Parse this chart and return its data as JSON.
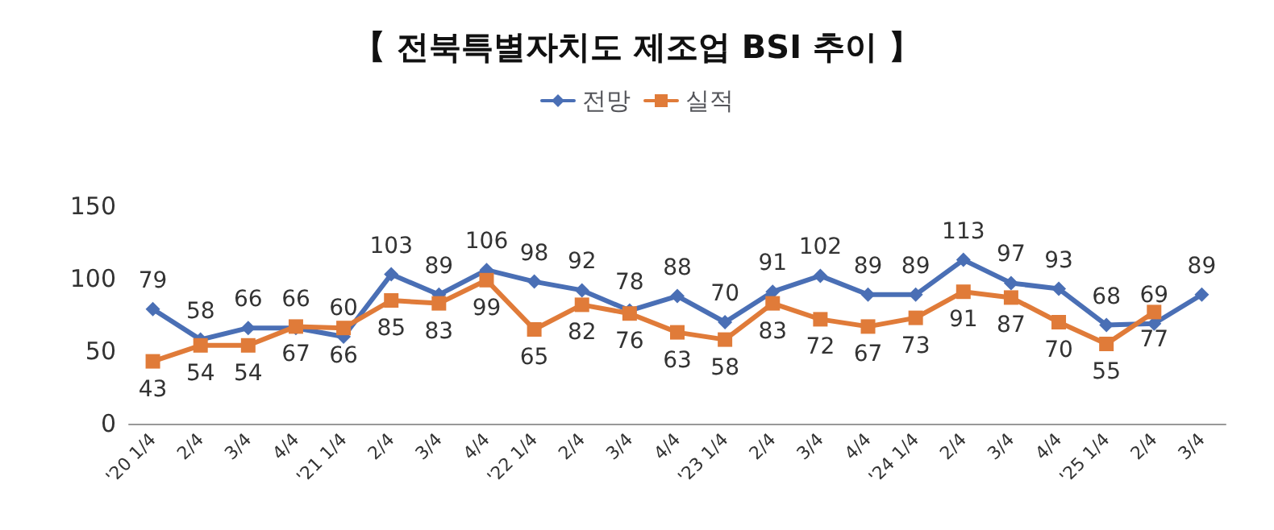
{
  "chart_data": {
    "type": "line",
    "title": "【 전북특별자치도 제조업 BSI 추이 】",
    "categories": [
      "'20 1/4",
      "2/4",
      "3/4",
      "4/4",
      "'21 1/4",
      "2/4",
      "3/4",
      "4/4",
      "'22 1/4",
      "2/4",
      "3/4",
      "4/4",
      "'23 1/4",
      "2/4",
      "3/4",
      "4/4",
      "'24 1/4",
      "2/4",
      "3/4",
      "4/4",
      "'25 1/4",
      "2/4",
      "3/4"
    ],
    "series": [
      {
        "name": "전망",
        "color": "#4a6fb5",
        "marker": "diamond",
        "values": [
          79,
          58,
          66,
          66,
          60,
          103,
          89,
          106,
          98,
          92,
          78,
          88,
          70,
          91,
          102,
          89,
          89,
          113,
          97,
          93,
          68,
          69,
          89
        ]
      },
      {
        "name": "실적",
        "color": "#e07b39",
        "marker": "square",
        "values": [
          43,
          54,
          54,
          67,
          66,
          85,
          83,
          99,
          65,
          82,
          76,
          63,
          58,
          83,
          72,
          67,
          73,
          91,
          87,
          70,
          55,
          77,
          null
        ]
      }
    ],
    "ylim": [
      0,
      150
    ],
    "yticks": [
      0,
      50,
      100,
      150
    ],
    "grid": false,
    "legend": "top",
    "data_labels": true,
    "line_style": "solid"
  }
}
